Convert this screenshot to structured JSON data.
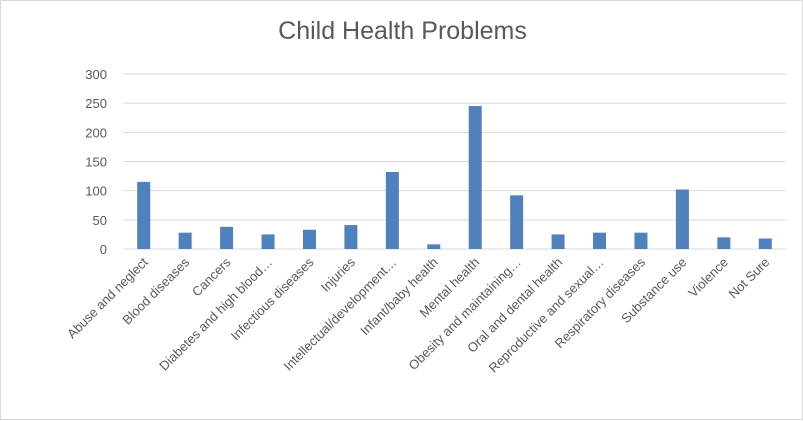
{
  "chart_data": {
    "type": "bar",
    "title": "Child Health Problems",
    "xlabel": "",
    "ylabel": "",
    "ylim": [
      0,
      300
    ],
    "yticks": [
      0,
      50,
      100,
      150,
      200,
      250,
      300
    ],
    "grid": true,
    "legend": "none",
    "bar_color": "#4f81bd",
    "grid_color": "#d9d9d9",
    "categories": [
      "Abuse and neglect",
      "Blood diseases",
      "Cancers",
      "Diabetes and high blood…",
      "Infectious diseases",
      "Injuries",
      "Intellectual/development…",
      "Infant/baby health",
      "Mental health",
      "Obesity and maintaining…",
      "Oral and dental health",
      "Reproductive and sexual…",
      "Respiratory diseases",
      "Substance use",
      "Violence",
      "Not Sure"
    ],
    "values": [
      115,
      28,
      38,
      25,
      33,
      41,
      132,
      8,
      245,
      92,
      25,
      28,
      28,
      102,
      20,
      18
    ]
  }
}
